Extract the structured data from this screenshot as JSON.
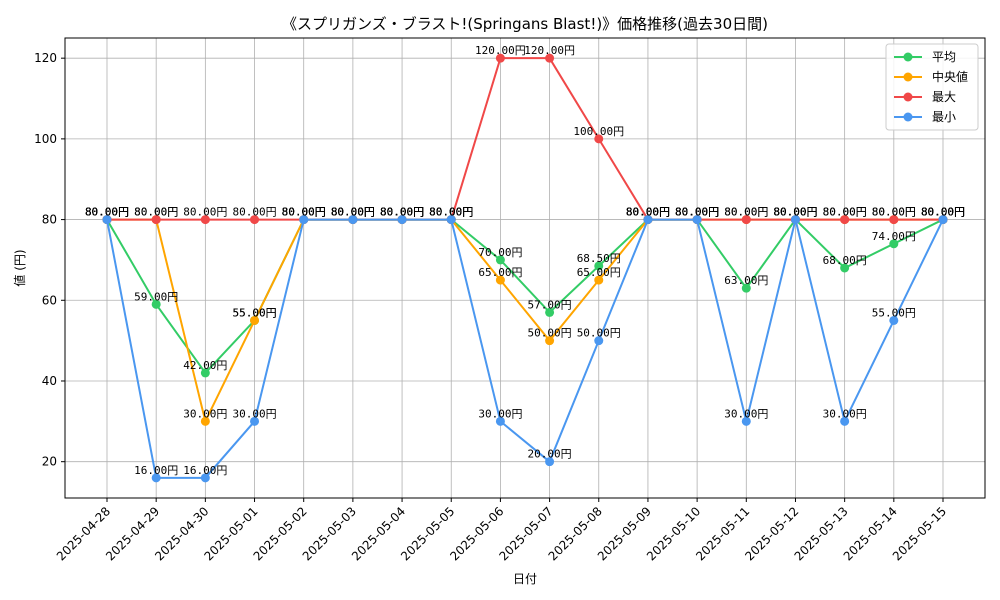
{
  "chart_data": {
    "type": "line",
    "title": "《スプリガンズ・ブラスト!(Springans Blast!)》価格推移(過去30日間)",
    "xlabel": "日付",
    "ylabel": "値 (円)",
    "ylim": [
      11,
      125
    ],
    "yticks": [
      20,
      40,
      60,
      80,
      100,
      120
    ],
    "grid": true,
    "legend_position": "top-right",
    "label_suffix": "円",
    "categories": [
      "2025-04-28",
      "2025-04-29",
      "2025-04-30",
      "2025-05-01",
      "2025-05-02",
      "2025-05-03",
      "2025-05-04",
      "2025-05-05",
      "2025-05-06",
      "2025-05-07",
      "2025-05-08",
      "2025-05-09",
      "2025-05-10",
      "2025-05-11",
      "2025-05-12",
      "2025-05-13",
      "2025-05-14",
      "2025-05-15"
    ],
    "series": [
      {
        "name": "平均",
        "color": "#33cc66",
        "values": [
          80,
          59,
          42,
          55,
          80,
          80,
          80,
          80,
          70,
          57,
          68.5,
          80,
          80,
          63,
          80,
          68,
          74,
          80
        ]
      },
      {
        "name": "中央値",
        "color": "#ffa500",
        "values": [
          80,
          80,
          30,
          55,
          80,
          80,
          80,
          80,
          65,
          50,
          65,
          80,
          80,
          80,
          80,
          80,
          80,
          80
        ]
      },
      {
        "name": "最大",
        "color": "#f04848",
        "values": [
          80,
          80,
          80,
          80,
          80,
          80,
          80,
          80,
          120,
          120,
          100,
          80,
          80,
          80,
          80,
          80,
          80,
          80
        ]
      },
      {
        "name": "最小",
        "color": "#4a97f0",
        "values": [
          80,
          16,
          16,
          30,
          80,
          80,
          80,
          80,
          30,
          20,
          50,
          80,
          80,
          30,
          80,
          30,
          55,
          80
        ]
      }
    ]
  }
}
